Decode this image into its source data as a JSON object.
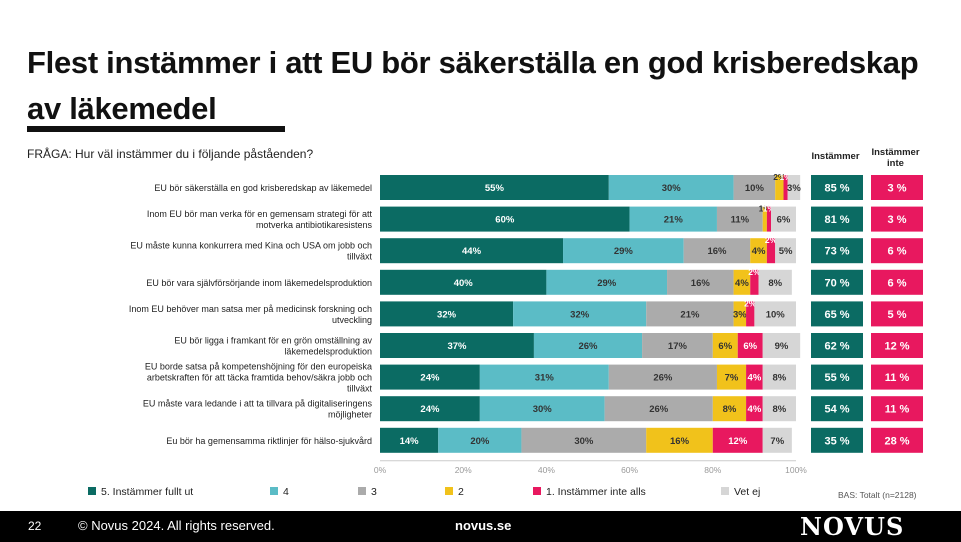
{
  "slide": {
    "title": "Flest instämmer i att EU bör säkerställa en god krisberedskap av läkemedel",
    "question": "FRÅGA: Hur väl instämmer du i följande påståenden?",
    "col_agree": "Instämmer",
    "col_disagree": "Instämmer inte",
    "base": "BAS: Totalt (n=2128)"
  },
  "footer": {
    "page_number": "22",
    "copyright": "© Novus 2024. All rights reserved.",
    "site": "novus.se",
    "logo": "NOVUS"
  },
  "colors": {
    "s5": "#0b6b63",
    "s4": "#5bbcc6",
    "s3": "#ababab",
    "s2": "#f1c21b",
    "s1": "#e8185f",
    "vet": "#d6d6d6",
    "agree_box": "#0b6b63",
    "disagree_box": "#e8185f"
  },
  "chart_data": {
    "type": "bar",
    "orientation": "horizontal",
    "stacked": true,
    "categories": [
      "EU bör säkerställa en god krisberedskap av läkemedel",
      "Inom EU bör man verka för en gemensam strategi för att motverka antibiotikaresistens",
      "EU måste kunna konkurrera med Kina och USA om jobb och tillväxt",
      "EU bör vara självförsörjande inom läkemedelsproduktion",
      "Inom EU behöver man satsa mer på medicinsk forskning och utveckling",
      "EU bör ligga i framkant för en grön omställning av läkemedelsproduktion",
      "EU borde satsa på kompetenshöjning för den europeiska arbetskraften för att täcka framtida behov/säkra jobb och tillväxt",
      "EU måste vara ledande i att ta tillvara på digitaliseringens möjligheter",
      "Eu bör ha gemensamma riktlinjer för hälso-sjukvård"
    ],
    "series": [
      {
        "name": "5. Instämmer fullt ut",
        "values": [
          55,
          60,
          44,
          40,
          32,
          37,
          24,
          24,
          14
        ]
      },
      {
        "name": "4",
        "values": [
          30,
          21,
          29,
          29,
          32,
          26,
          31,
          30,
          20
        ]
      },
      {
        "name": "3",
        "values": [
          10,
          11,
          16,
          16,
          21,
          17,
          26,
          26,
          30
        ]
      },
      {
        "name": "2",
        "values": [
          2,
          1,
          4,
          4,
          3,
          6,
          7,
          8,
          16
        ]
      },
      {
        "name": "1. Instämmer inte alls",
        "values": [
          1,
          1,
          2,
          2,
          2,
          6,
          4,
          4,
          12
        ]
      },
      {
        "name": "Vet ej",
        "values": [
          3,
          6,
          5,
          8,
          10,
          9,
          8,
          8,
          7
        ]
      }
    ],
    "agree": [
      "85 %",
      "81 %",
      "73 %",
      "70 %",
      "65 %",
      "62 %",
      "55 %",
      "54 %",
      "35 %"
    ],
    "disagree": [
      "3 %",
      "3 %",
      "6 %",
      "6 %",
      "5 %",
      "12 %",
      "11 %",
      "11 %",
      "28 %"
    ],
    "xlim": [
      0,
      100
    ],
    "x_ticks": [
      "0%",
      "20%",
      "40%",
      "60%",
      "80%",
      "100%"
    ],
    "legend_position": "bottom",
    "grid": false
  }
}
